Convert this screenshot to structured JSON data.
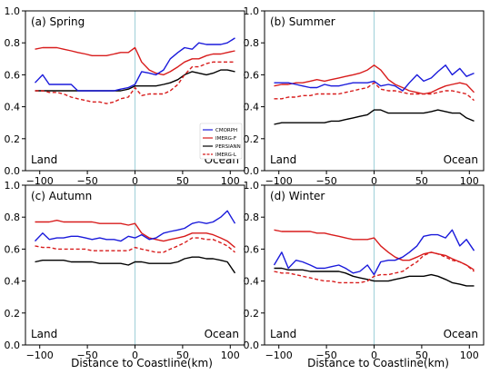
{
  "chart_data": {
    "type": "line",
    "xlabel": "Distance to Coastline(km)",
    "xlim": [
      -115,
      115
    ],
    "ylim": [
      0.0,
      1.0
    ],
    "x_ticks": [
      -100,
      -50,
      0,
      50,
      100
    ],
    "y_ticks": [
      0.0,
      0.2,
      0.4,
      0.6,
      0.8,
      1.0
    ],
    "y_tick_labels": [
      "0.0",
      "0.2",
      "0.4",
      "0.6",
      "0.8",
      "1.0"
    ],
    "land_label": "Land",
    "ocean_label": "Ocean",
    "coastline_x": 0,
    "legend": {
      "placement": "inside lower-right of panel (a)",
      "entries": [
        {
          "name": "CMORPH",
          "color": "#1a1adb",
          "style": "solid"
        },
        {
          "name": "IMERG-F",
          "color": "#d81c1c",
          "style": "solid"
        },
        {
          "name": "PERSIANN",
          "color": "#000000",
          "style": "solid"
        },
        {
          "name": "IMERG-L",
          "color": "#d81c1c",
          "style": "dashed"
        }
      ]
    },
    "x": [
      -105,
      -97,
      -90,
      -82,
      -75,
      -67,
      -60,
      -52,
      -45,
      -37,
      -30,
      -22,
      -15,
      -7,
      0,
      7,
      15,
      22,
      30,
      37,
      45,
      52,
      60,
      67,
      75,
      82,
      90,
      97,
      105
    ],
    "panels": [
      {
        "title": "(a) Spring",
        "series": [
          {
            "name": "CMORPH",
            "values": [
              0.55,
              0.6,
              0.54,
              0.54,
              0.54,
              0.54,
              0.5,
              0.5,
              0.5,
              0.5,
              0.5,
              0.5,
              0.51,
              0.52,
              0.54,
              0.62,
              0.61,
              0.6,
              0.63,
              0.7,
              0.74,
              0.77,
              0.76,
              0.8,
              0.79,
              0.79,
              0.79,
              0.8,
              0.83
            ]
          },
          {
            "name": "IMERG-F",
            "values": [
              0.76,
              0.77,
              0.77,
              0.77,
              0.76,
              0.75,
              0.74,
              0.73,
              0.72,
              0.72,
              0.72,
              0.73,
              0.74,
              0.74,
              0.77,
              0.68,
              0.63,
              0.61,
              0.6,
              0.62,
              0.65,
              0.68,
              0.7,
              0.7,
              0.72,
              0.73,
              0.73,
              0.74,
              0.75
            ]
          },
          {
            "name": "PERSIANN",
            "values": [
              0.5,
              0.5,
              0.5,
              0.5,
              0.5,
              0.5,
              0.5,
              0.5,
              0.5,
              0.5,
              0.5,
              0.5,
              0.5,
              0.51,
              0.53,
              0.53,
              0.53,
              0.53,
              0.54,
              0.55,
              0.57,
              0.6,
              0.62,
              0.61,
              0.6,
              0.61,
              0.63,
              0.63,
              0.62
            ]
          },
          {
            "name": "IMERG-L",
            "values": [
              0.5,
              0.5,
              0.49,
              0.49,
              0.48,
              0.46,
              0.45,
              0.44,
              0.43,
              0.43,
              0.42,
              0.43,
              0.45,
              0.46,
              0.52,
              0.47,
              0.48,
              0.48,
              0.48,
              0.5,
              0.54,
              0.6,
              0.65,
              0.65,
              0.67,
              0.68,
              0.68,
              0.68,
              0.68
            ]
          }
        ]
      },
      {
        "title": "(b) Summer",
        "series": [
          {
            "name": "CMORPH",
            "values": [
              0.55,
              0.55,
              0.55,
              0.54,
              0.53,
              0.52,
              0.52,
              0.54,
              0.53,
              0.53,
              0.54,
              0.55,
              0.55,
              0.55,
              0.56,
              0.53,
              0.54,
              0.53,
              0.5,
              0.55,
              0.6,
              0.56,
              0.58,
              0.62,
              0.66,
              0.6,
              0.64,
              0.59,
              0.61
            ]
          },
          {
            "name": "IMERG-F",
            "values": [
              0.53,
              0.54,
              0.54,
              0.55,
              0.55,
              0.56,
              0.57,
              0.56,
              0.57,
              0.58,
              0.59,
              0.6,
              0.61,
              0.63,
              0.66,
              0.63,
              0.57,
              0.54,
              0.52,
              0.5,
              0.49,
              0.48,
              0.49,
              0.51,
              0.53,
              0.54,
              0.55,
              0.54,
              0.49
            ]
          },
          {
            "name": "PERSIANN",
            "values": [
              0.29,
              0.3,
              0.3,
              0.3,
              0.3,
              0.3,
              0.3,
              0.3,
              0.31,
              0.31,
              0.32,
              0.33,
              0.34,
              0.35,
              0.38,
              0.38,
              0.36,
              0.36,
              0.36,
              0.36,
              0.36,
              0.36,
              0.37,
              0.38,
              0.37,
              0.36,
              0.36,
              0.33,
              0.31
            ]
          },
          {
            "name": "IMERG-L",
            "values": [
              0.45,
              0.45,
              0.46,
              0.46,
              0.47,
              0.47,
              0.48,
              0.48,
              0.48,
              0.48,
              0.49,
              0.5,
              0.51,
              0.52,
              0.55,
              0.51,
              0.5,
              0.5,
              0.49,
              0.48,
              0.48,
              0.48,
              0.48,
              0.49,
              0.5,
              0.5,
              0.49,
              0.48,
              0.44
            ]
          }
        ]
      },
      {
        "title": "(c) Autumn",
        "series": [
          {
            "name": "CMORPH",
            "values": [
              0.65,
              0.7,
              0.66,
              0.67,
              0.67,
              0.68,
              0.68,
              0.67,
              0.66,
              0.67,
              0.66,
              0.66,
              0.65,
              0.68,
              0.67,
              0.69,
              0.66,
              0.67,
              0.7,
              0.71,
              0.72,
              0.73,
              0.76,
              0.77,
              0.76,
              0.77,
              0.8,
              0.84,
              0.76
            ]
          },
          {
            "name": "IMERG-F",
            "values": [
              0.77,
              0.77,
              0.77,
              0.78,
              0.77,
              0.77,
              0.77,
              0.77,
              0.77,
              0.76,
              0.76,
              0.76,
              0.76,
              0.75,
              0.76,
              0.7,
              0.67,
              0.66,
              0.65,
              0.66,
              0.67,
              0.68,
              0.7,
              0.7,
              0.7,
              0.69,
              0.67,
              0.65,
              0.61
            ]
          },
          {
            "name": "PERSIANN",
            "values": [
              0.52,
              0.53,
              0.53,
              0.53,
              0.53,
              0.52,
              0.52,
              0.52,
              0.52,
              0.51,
              0.51,
              0.51,
              0.51,
              0.5,
              0.52,
              0.52,
              0.51,
              0.51,
              0.51,
              0.51,
              0.52,
              0.54,
              0.55,
              0.55,
              0.54,
              0.54,
              0.53,
              0.52,
              0.45
            ]
          },
          {
            "name": "IMERG-L",
            "values": [
              0.62,
              0.61,
              0.61,
              0.6,
              0.6,
              0.6,
              0.6,
              0.6,
              0.59,
              0.59,
              0.59,
              0.59,
              0.59,
              0.59,
              0.61,
              0.6,
              0.59,
              0.58,
              0.58,
              0.6,
              0.62,
              0.64,
              0.67,
              0.67,
              0.66,
              0.66,
              0.64,
              0.62,
              0.58
            ]
          }
        ]
      },
      {
        "title": "(d) Winter",
        "series": [
          {
            "name": "CMORPH",
            "values": [
              0.5,
              0.58,
              0.48,
              0.53,
              0.52,
              0.5,
              0.48,
              0.48,
              0.49,
              0.5,
              0.48,
              0.45,
              0.46,
              0.5,
              0.44,
              0.52,
              0.53,
              0.53,
              0.55,
              0.58,
              0.62,
              0.68,
              0.69,
              0.69,
              0.67,
              0.72,
              0.62,
              0.66,
              0.59
            ]
          },
          {
            "name": "IMERG-F",
            "values": [
              0.72,
              0.71,
              0.71,
              0.71,
              0.71,
              0.71,
              0.7,
              0.7,
              0.69,
              0.68,
              0.67,
              0.66,
              0.66,
              0.66,
              0.67,
              0.62,
              0.58,
              0.55,
              0.53,
              0.53,
              0.55,
              0.57,
              0.58,
              0.57,
              0.56,
              0.54,
              0.52,
              0.5,
              0.47
            ]
          },
          {
            "name": "PERSIANN",
            "values": [
              0.48,
              0.48,
              0.47,
              0.47,
              0.47,
              0.46,
              0.46,
              0.46,
              0.46,
              0.46,
              0.45,
              0.43,
              0.42,
              0.41,
              0.4,
              0.4,
              0.4,
              0.41,
              0.42,
              0.43,
              0.43,
              0.43,
              0.44,
              0.43,
              0.41,
              0.39,
              0.38,
              0.37,
              0.37
            ]
          },
          {
            "name": "IMERG-L",
            "values": [
              0.46,
              0.45,
              0.45,
              0.44,
              0.43,
              0.42,
              0.41,
              0.4,
              0.4,
              0.39,
              0.39,
              0.39,
              0.39,
              0.4,
              0.43,
              0.44,
              0.44,
              0.45,
              0.46,
              0.49,
              0.52,
              0.56,
              0.58,
              0.57,
              0.55,
              0.53,
              0.52,
              0.5,
              0.46
            ]
          }
        ]
      }
    ]
  },
  "colors": {
    "CMORPH": "#1a1adb",
    "IMERG-F": "#d81c1c",
    "PERSIANN": "#000000",
    "IMERG-L": "#d81c1c",
    "coastline": "#a8d4dc"
  }
}
